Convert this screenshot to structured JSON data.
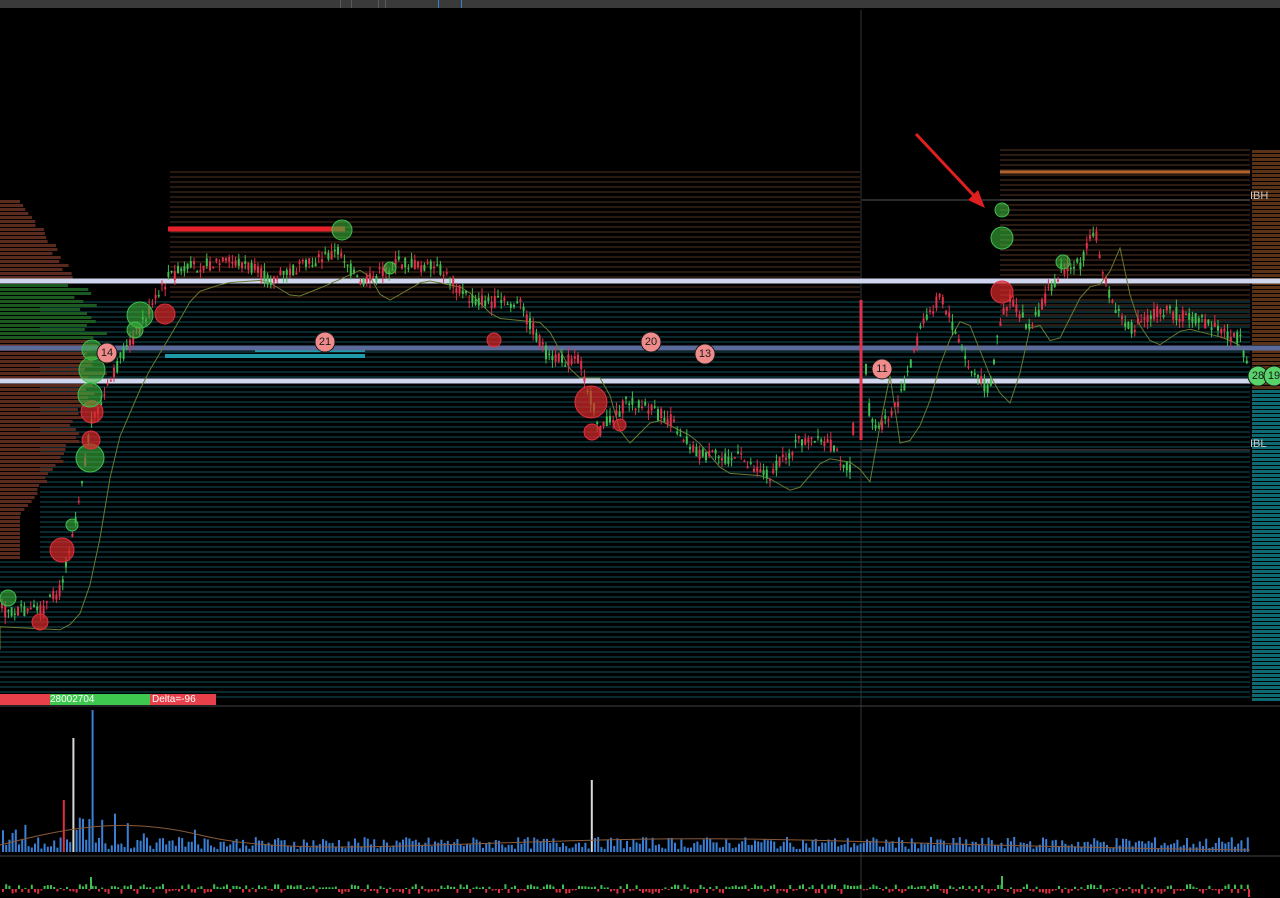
{
  "window": {
    "tab_count": 3
  },
  "price_levels": {
    "ibh_label": "IBH",
    "ibl_label": "IBL"
  },
  "badges": [
    {
      "text": "14",
      "color": "#f08b8b"
    },
    {
      "text": "21",
      "color": "#f08b8b"
    },
    {
      "text": "20",
      "color": "#f08b8b"
    },
    {
      "text": "13",
      "color": "#f08b8b"
    },
    {
      "text": "11",
      "color": "#f08b8b"
    },
    {
      "text": "28",
      "color": "#57d36a"
    },
    {
      "text": "19",
      "color": "#57d36a"
    }
  ],
  "footer": {
    "volume_value": "28002704",
    "delta_label": "Delta=-96"
  },
  "colors": {
    "up_candle": "#3fbf4f",
    "down_candle": "#e0304a",
    "level_line": "#cfd6ee",
    "poc_line": "#5a6a9a",
    "volume_bar": "#3a7fd6",
    "profile_teal": "#1e6f7a",
    "profile_orange": "#a0552a",
    "arrow": "#e02020"
  },
  "icons": {
    "annotation": "red-arrow-icon",
    "marker": "red-line-marker"
  }
}
